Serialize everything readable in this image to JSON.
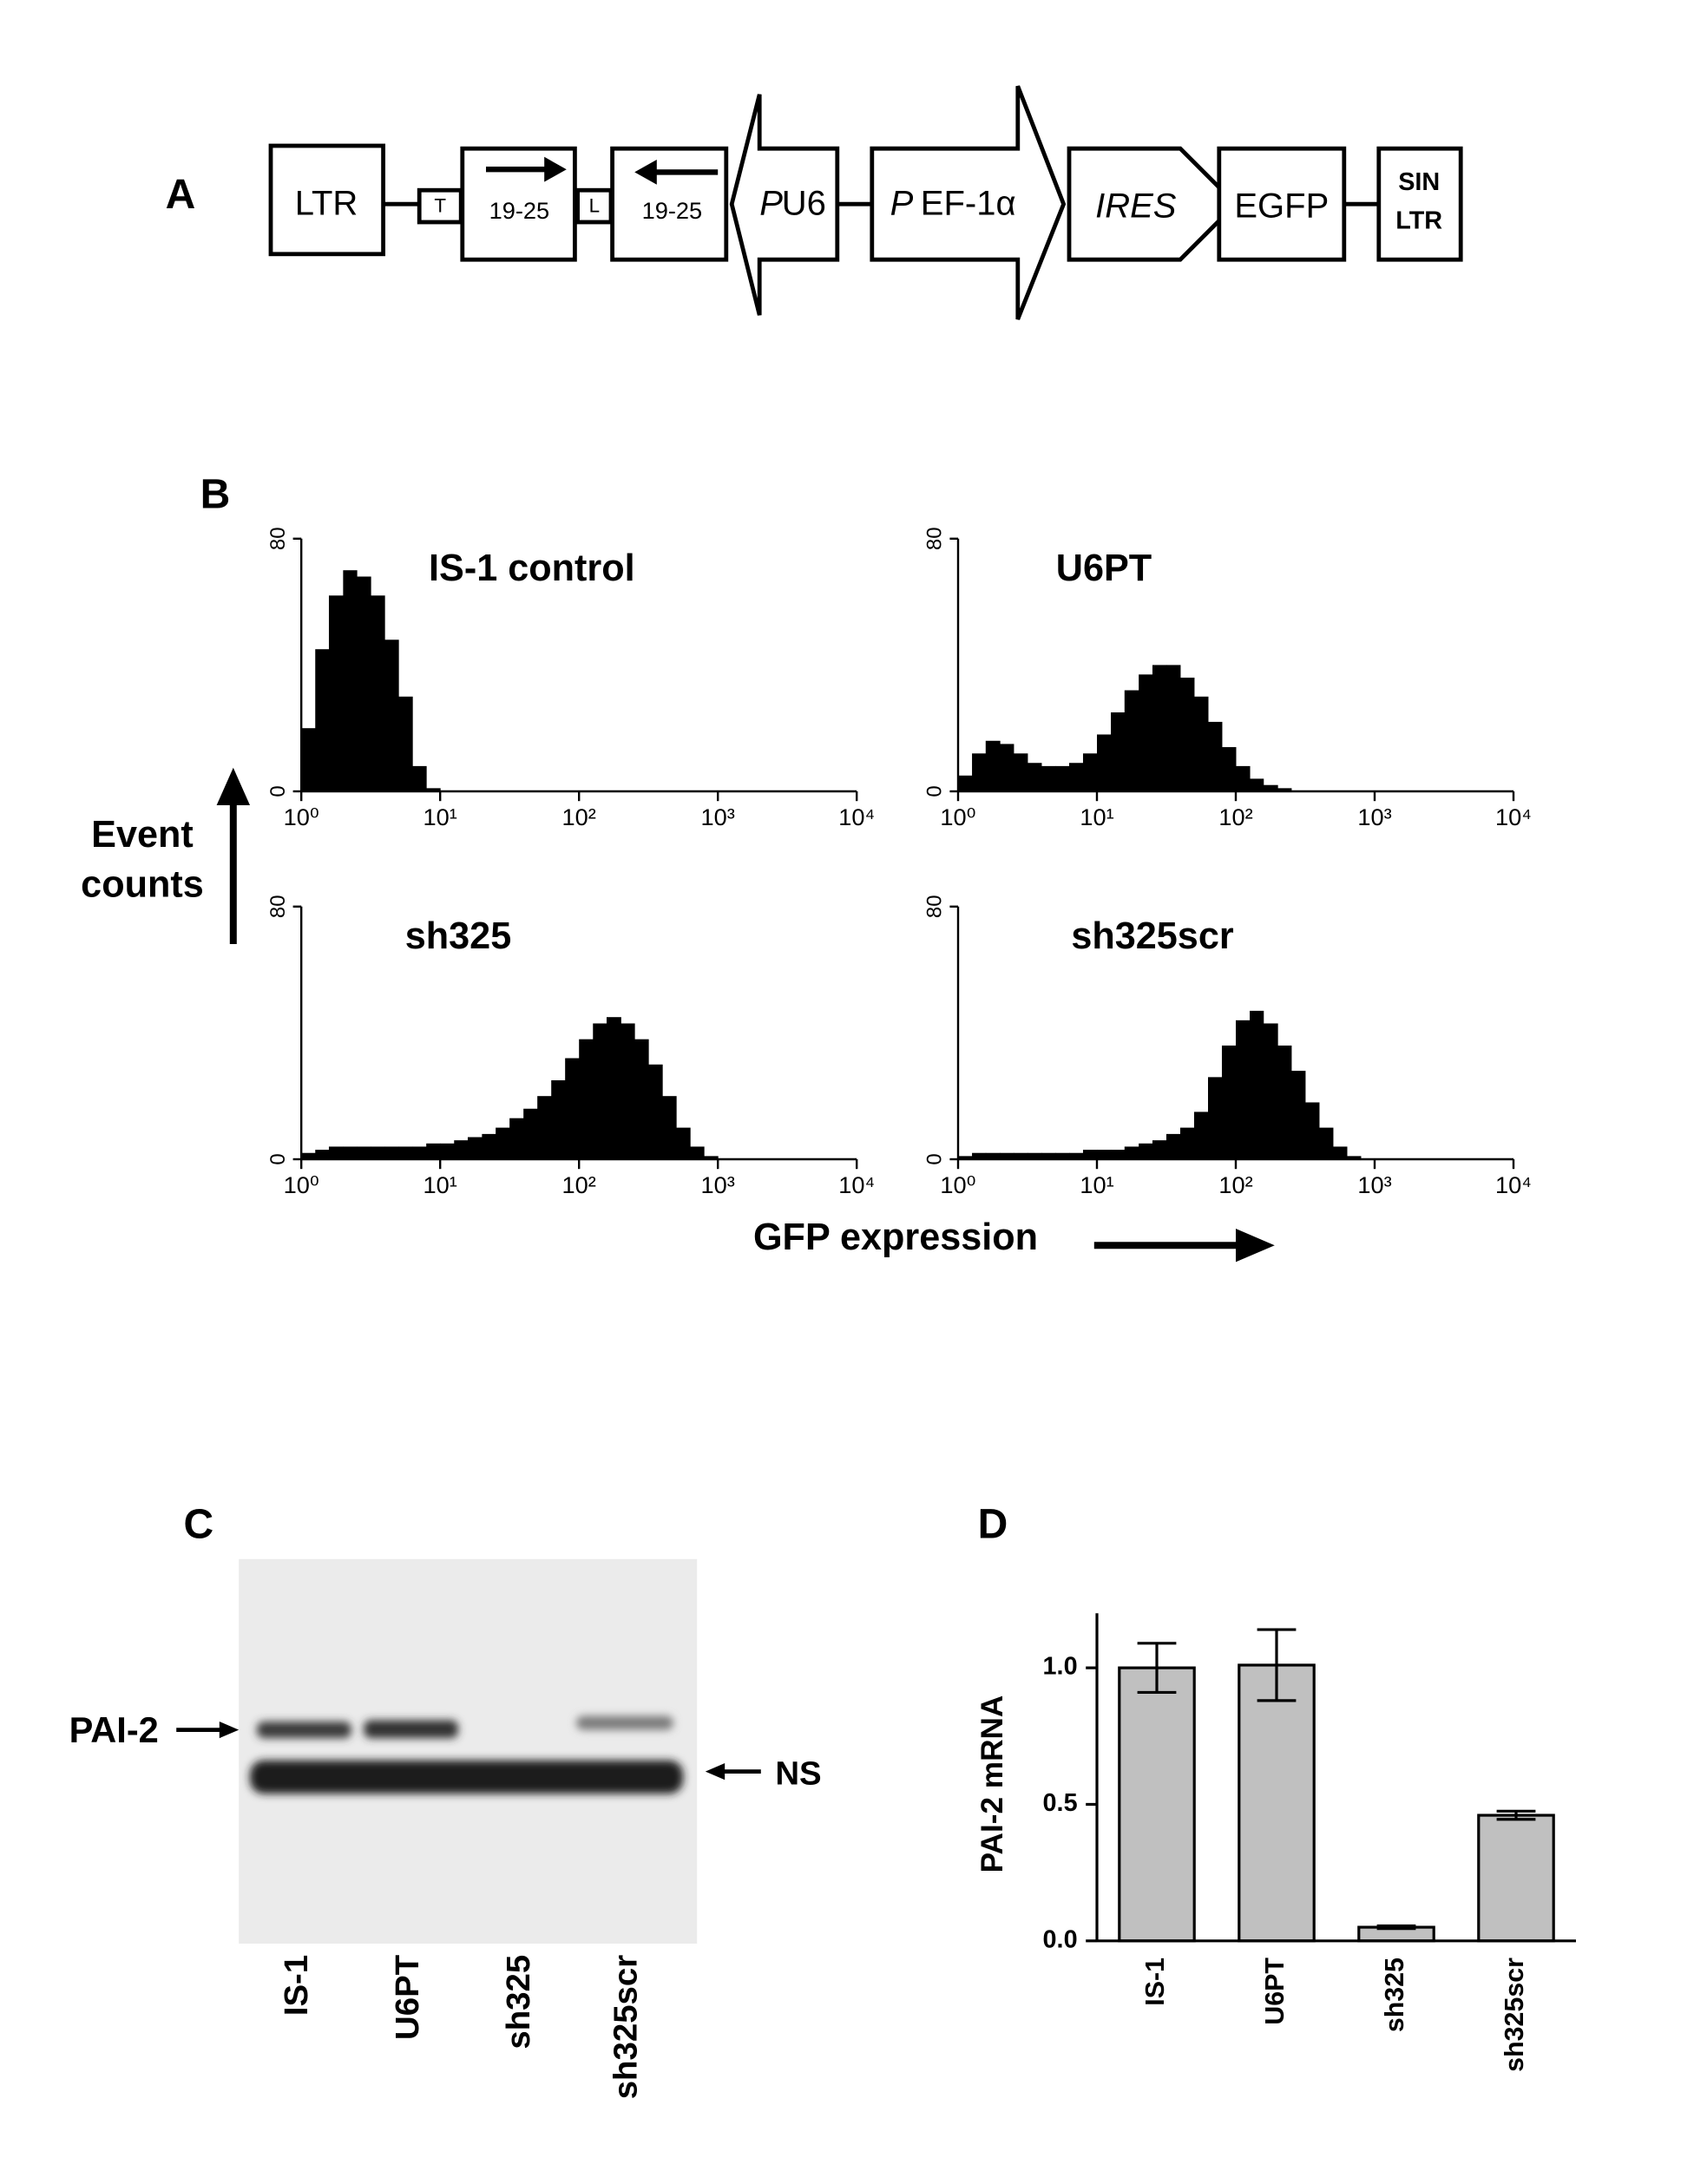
{
  "panel_labels": [
    "A",
    "B",
    "C",
    "D"
  ],
  "panel_a": {
    "ltr": "LTR",
    "t": "T",
    "stem1": "19-25",
    "l": "L",
    "stem2": "19-25",
    "pu6": [
      "P",
      "U6"
    ],
    "pef": [
      "P",
      "EF-1α"
    ],
    "ires": "IRES",
    "egfp": "EGFP",
    "sin": [
      "SIN",
      "LTR"
    ]
  },
  "panel_b": {
    "ylabel": "Event counts",
    "xlabel": "GFP expression"
  },
  "panel_c": {
    "protein": "PAI-2",
    "ns": "NS",
    "lanes": [
      "IS-1",
      "U6PT",
      "sh325",
      "sh325scr"
    ]
  },
  "chart_data": [
    {
      "type": "histogram",
      "title": "IS-1 control",
      "color": "#000000",
      "xscale": "log",
      "bins": [
        1,
        1.26,
        1.58,
        2,
        2.51,
        3.16,
        3.98,
        5.01,
        6.31,
        7.94,
        10,
        12.6,
        15.8,
        20,
        25.1,
        31.6,
        39.8,
        50.1,
        63.1,
        79.4,
        100,
        126,
        158,
        200,
        251,
        316,
        398,
        501,
        631,
        794,
        1000,
        1259,
        1585,
        1995,
        2512,
        3162,
        3981
      ],
      "values": [
        20,
        45,
        62,
        70,
        68,
        62,
        48,
        30,
        8,
        1,
        0,
        0,
        0,
        0,
        0,
        0,
        0,
        0,
        0,
        0,
        0,
        0,
        0,
        0,
        0,
        0,
        0,
        0,
        0,
        0,
        0,
        0,
        0,
        0,
        0,
        0
      ],
      "xlim": [
        1,
        10000
      ],
      "xticks": [
        {
          "value": 1,
          "label": "10⁰"
        },
        {
          "value": 10,
          "label": "10¹"
        },
        {
          "value": 100,
          "label": "10²"
        },
        {
          "value": 1000,
          "label": "10³"
        },
        {
          "value": 10000,
          "label": "10⁴"
        }
      ],
      "ylim": [
        0,
        80
      ],
      "yticks": [
        0,
        80
      ]
    },
    {
      "type": "histogram",
      "title": "U6PT",
      "color": "#000000",
      "xscale": "log",
      "bins": [
        1,
        1.26,
        1.58,
        2,
        2.51,
        3.16,
        3.98,
        5.01,
        6.31,
        7.94,
        10,
        12.6,
        15.8,
        20,
        25.1,
        31.6,
        39.8,
        50.1,
        63.1,
        79.4,
        100,
        126,
        158,
        200,
        251,
        316,
        398,
        501,
        631,
        794,
        1000,
        1259,
        1585,
        1995,
        2512,
        3162,
        3981
      ],
      "values": [
        5,
        12,
        16,
        15,
        12,
        9,
        8,
        8,
        9,
        12,
        18,
        25,
        32,
        37,
        40,
        40,
        36,
        30,
        22,
        14,
        8,
        4,
        2,
        1,
        0,
        0,
        0,
        0,
        0,
        0,
        0,
        0,
        0,
        0,
        0,
        0
      ],
      "xlim": [
        1,
        10000
      ],
      "xticks": [
        {
          "value": 1,
          "label": "10⁰"
        },
        {
          "value": 10,
          "label": "10¹"
        },
        {
          "value": 100,
          "label": "10²"
        },
        {
          "value": 1000,
          "label": "10³"
        },
        {
          "value": 10000,
          "label": "10⁴"
        }
      ],
      "ylim": [
        0,
        80
      ],
      "yticks": [
        0,
        80
      ]
    },
    {
      "type": "histogram",
      "title": "sh325",
      "color": "#000000",
      "xscale": "log",
      "bins": [
        1,
        1.26,
        1.58,
        2,
        2.51,
        3.16,
        3.98,
        5.01,
        6.31,
        7.94,
        10,
        12.6,
        15.8,
        20,
        25.1,
        31.6,
        39.8,
        50.1,
        63.1,
        79.4,
        100,
        126,
        158,
        200,
        251,
        316,
        398,
        501,
        631,
        794,
        1000,
        1259,
        1585,
        1995,
        2512,
        3162,
        3981
      ],
      "values": [
        2,
        3,
        4,
        4,
        4,
        4,
        4,
        4,
        4,
        5,
        5,
        6,
        7,
        8,
        10,
        13,
        16,
        20,
        25,
        32,
        38,
        43,
        45,
        43,
        38,
        30,
        20,
        10,
        4,
        1,
        0,
        0,
        0,
        0,
        0,
        0
      ],
      "xlim": [
        1,
        10000
      ],
      "xticks": [
        {
          "value": 1,
          "label": "10⁰"
        },
        {
          "value": 10,
          "label": "10¹"
        },
        {
          "value": 100,
          "label": "10²"
        },
        {
          "value": 1000,
          "label": "10³"
        },
        {
          "value": 10000,
          "label": "10⁴"
        }
      ],
      "ylim": [
        0,
        80
      ],
      "yticks": [
        0,
        80
      ]
    },
    {
      "type": "histogram",
      "title": "sh325scr",
      "color": "#000000",
      "xscale": "log",
      "bins": [
        1,
        1.26,
        1.58,
        2,
        2.51,
        3.16,
        3.98,
        5.01,
        6.31,
        7.94,
        10,
        12.6,
        15.8,
        20,
        25.1,
        31.6,
        39.8,
        50.1,
        63.1,
        79.4,
        100,
        126,
        158,
        200,
        251,
        316,
        398,
        501,
        631,
        794,
        1000,
        1259,
        1585,
        1995,
        2512,
        3162,
        3981
      ],
      "values": [
        1,
        2,
        2,
        2,
        2,
        2,
        2,
        2,
        2,
        3,
        3,
        3,
        4,
        5,
        6,
        8,
        10,
        15,
        26,
        36,
        44,
        47,
        43,
        36,
        28,
        18,
        10,
        4,
        1,
        0,
        0,
        0,
        0,
        0,
        0,
        0
      ],
      "xlim": [
        1,
        10000
      ],
      "xticks": [
        {
          "value": 1,
          "label": "10⁰"
        },
        {
          "value": 10,
          "label": "10¹"
        },
        {
          "value": 100,
          "label": "10²"
        },
        {
          "value": 1000,
          "label": "10³"
        },
        {
          "value": 10000,
          "label": "10⁴"
        }
      ],
      "ylim": [
        0,
        80
      ],
      "yticks": [
        0,
        80
      ]
    },
    {
      "type": "bar",
      "ylabel": "PAI-2 mRNA",
      "color": "#c0c0c0",
      "categories": [
        "IS-1",
        "U6PT",
        "sh325",
        "sh325scr"
      ],
      "values": [
        1.0,
        1.01,
        0.05,
        0.46
      ],
      "errors": [
        0.09,
        0.13,
        0.005,
        0.015
      ],
      "ylim": [
        0,
        1.2
      ],
      "yticks": [
        {
          "value": 0,
          "label": "0.0"
        },
        {
          "value": 0.5,
          "label": "0.5"
        },
        {
          "value": 1,
          "label": "1.0"
        }
      ]
    }
  ]
}
